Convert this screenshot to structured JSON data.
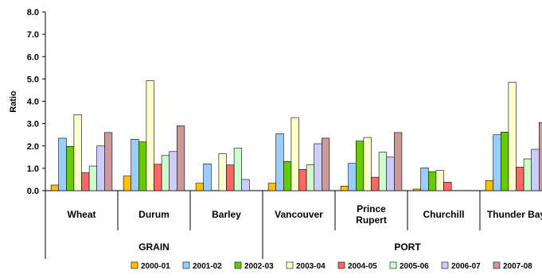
{
  "chart_data": {
    "type": "bar",
    "ylabel": "Ratio",
    "ylim": [
      0,
      8
    ],
    "y_ticks": [
      "0.0",
      "1.0",
      "2.0",
      "3.0",
      "4.0",
      "5.0",
      "6.0",
      "7.0",
      "8.0"
    ],
    "grid": false,
    "legend_position": "bottom",
    "categories": [
      "Wheat",
      "Durum",
      "Barley",
      "Vancouver",
      "Prince\nRupert",
      "Churchill",
      "Thunder Bay"
    ],
    "groups": [
      {
        "label": "GRAIN",
        "categories": [
          "Wheat",
          "Durum",
          "Barley"
        ]
      },
      {
        "label": "PORT",
        "categories": [
          "Vancouver",
          "Prince\nRupert",
          "Churchill",
          "Thunder Bay"
        ]
      }
    ],
    "series": [
      {
        "name": "2000-01",
        "color": "#FFC000",
        "values": [
          0.25,
          0.65,
          0.33,
          0.33,
          0.2,
          0.07,
          0.45
        ]
      },
      {
        "name": "2001-02",
        "color": "#99CCFF",
        "values": [
          2.35,
          2.3,
          1.2,
          2.55,
          1.22,
          1.02,
          2.5
        ]
      },
      {
        "name": "2002-03",
        "color": "#66CC00",
        "values": [
          1.98,
          2.18,
          null,
          1.3,
          2.22,
          0.85,
          2.62
        ]
      },
      {
        "name": "2003-04",
        "color": "#FFFFCC",
        "values": [
          3.4,
          4.92,
          1.65,
          3.27,
          2.38,
          0.9,
          4.85
        ]
      },
      {
        "name": "2004-05",
        "color": "#FF6666",
        "values": [
          0.8,
          1.18,
          1.15,
          0.95,
          0.6,
          0.38,
          1.05
        ]
      },
      {
        "name": "2005-06",
        "color": "#CCFFCC",
        "values": [
          1.1,
          1.57,
          1.9,
          1.15,
          1.72,
          null,
          1.42
        ]
      },
      {
        "name": "2006-07",
        "color": "#CCCCFF",
        "values": [
          2.0,
          1.75,
          0.5,
          2.1,
          1.5,
          null,
          1.85
        ]
      },
      {
        "name": "2007-08",
        "color": "#CC9999",
        "values": [
          2.6,
          2.9,
          null,
          2.35,
          2.6,
          null,
          3.05
        ]
      }
    ]
  }
}
